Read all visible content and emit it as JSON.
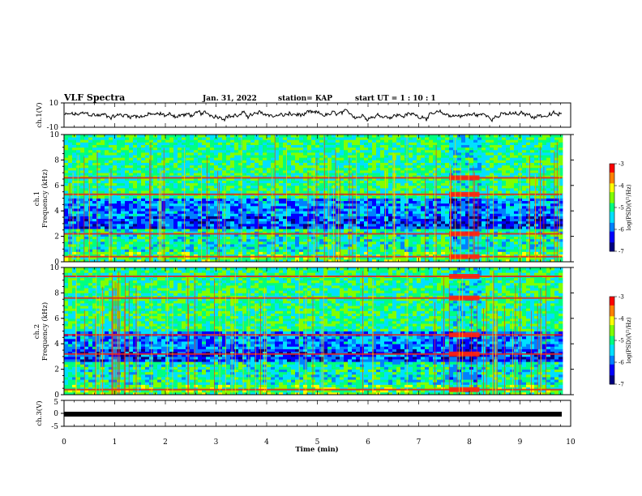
{
  "header": {
    "title": "VLF Spectra",
    "date": "Jan. 31, 2022",
    "station": "station= KAP",
    "start_ut": "start  UT =   1 : 10 : 1"
  },
  "chart_data": [
    {
      "type": "line",
      "panel": "waveform ch.1",
      "ylabel": "ch.1(V)",
      "ylim": [
        -10,
        10
      ],
      "y_ticks": [
        "10",
        "-10"
      ],
      "x_range": [
        0,
        9.83
      ],
      "values_note_style": "noise",
      "amplitude_range": [
        -6,
        5
      ]
    },
    {
      "type": "heatmap",
      "panel": "spectrogram ch.1",
      "ylabel_top": "ch.1",
      "ylabel": "Frequency (kHz)",
      "ylim": [
        0,
        10
      ],
      "y_ticks": [
        "0",
        "2",
        "4",
        "6",
        "8",
        "10"
      ],
      "strong_lines_khz": [
        6.6,
        5.3,
        2.2,
        0.4
      ],
      "interval_min": [
        7.6,
        8.2
      ],
      "colorbar": {
        "label": "log(PSD)(V²/Hz)",
        "range": [
          -7,
          -3
        ],
        "ticks": [
          "-3",
          "-4",
          "-5",
          "-6",
          "-7"
        ]
      }
    },
    {
      "type": "heatmap",
      "panel": "spectrogram ch.2",
      "ylabel_top": "ch.2",
      "ylabel": "Frequency (kHz)",
      "ylim": [
        0,
        10
      ],
      "y_ticks": [
        "0",
        "2",
        "4",
        "6",
        "8",
        "10"
      ],
      "strong_lines_khz": [
        9.3,
        7.6,
        4.7,
        3.2,
        0.4
      ],
      "interval_min": [
        7.6,
        8.2
      ],
      "colorbar": {
        "label": "log(PSD)(V²/Hz)",
        "range": [
          -7,
          -3
        ],
        "ticks": [
          "-3",
          "-4",
          "-5",
          "-6",
          "-7"
        ]
      }
    },
    {
      "type": "line",
      "panel": "ch.3",
      "ylabel": "ch.3(V)",
      "ylim": [
        -5,
        5
      ],
      "y_ticks": [
        "5",
        "0",
        "-5"
      ],
      "value_constant": -0.5
    }
  ],
  "x_axis": {
    "label": "Time  (min)",
    "range": [
      0,
      10
    ],
    "ticks": [
      "0",
      "1",
      "2",
      "3",
      "4",
      "5",
      "6",
      "7",
      "8",
      "9",
      "10"
    ]
  },
  "colors": {
    "colormap": [
      "#000080",
      "#0000ff",
      "#0080ff",
      "#00e0ff",
      "#00ff80",
      "#80ff00",
      "#ffff00",
      "#ff8000",
      "#ff0000",
      "#ffffff"
    ]
  }
}
